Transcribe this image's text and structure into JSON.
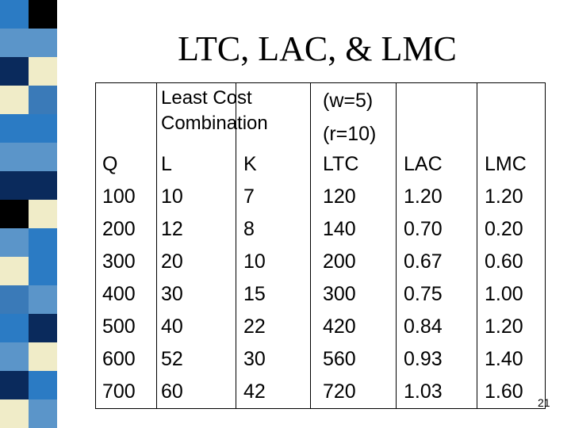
{
  "slide": {
    "title": "LTC, LAC, & LMC",
    "page_number": "21",
    "stripe_colors": [
      "#2b7bc4",
      "#5b95c9",
      "#0a2a5c",
      "#f0ecc8",
      "#2b7bc4",
      "#5b95c9",
      "#0a2a5c",
      "#000000",
      "#5b95c9",
      "#f0ecc8",
      "#3a7ab8",
      "#2b7bc4",
      "#5b95c9",
      "#0a2a5c",
      "#f0ecc8",
      "#2b7bc4"
    ]
  },
  "table": {
    "group_headers": {
      "least_cost": [
        "Least Cost",
        "Combination"
      ],
      "prices": [
        "(w=5)",
        "(r=10)"
      ]
    },
    "columns": [
      "Q",
      "L",
      "K",
      "LTC",
      "LAC",
      "LMC"
    ],
    "rows": [
      [
        "100",
        "10",
        "7",
        "120",
        "1.20",
        "1.20"
      ],
      [
        "200",
        "12",
        "8",
        "140",
        "0.70",
        "0.20"
      ],
      [
        "300",
        "20",
        "10",
        "200",
        "0.67",
        "0.60"
      ],
      [
        "400",
        "30",
        "15",
        "300",
        "0.75",
        "1.00"
      ],
      [
        "500",
        "40",
        "22",
        "420",
        "0.84",
        "1.20"
      ],
      [
        "600",
        "52",
        "30",
        "560",
        "0.93",
        "1.40"
      ],
      [
        "700",
        "60",
        "42",
        "720",
        "1.03",
        "1.60"
      ]
    ]
  }
}
